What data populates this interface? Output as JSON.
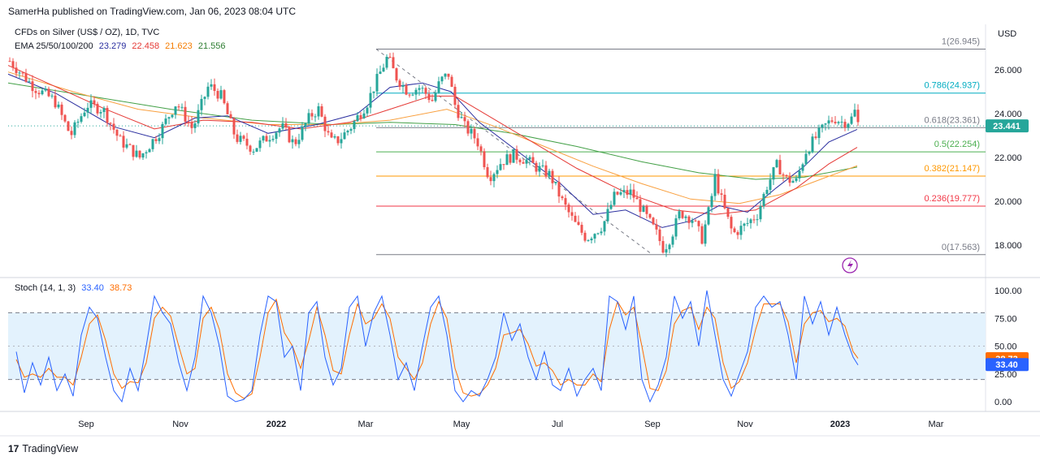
{
  "header": {
    "publisher": "SamerHa published on TradingView.com, Jan 06, 2023 08:04 UTC"
  },
  "legend": {
    "symbol": "CFDs on Silver (US$ / OZ), 1D, TVC",
    "ema_label": "EMA 25/50/100/200",
    "ema_values": [
      "23.279",
      "22.458",
      "21.623",
      "21.556"
    ],
    "stoch_label": "Stoch (14, 1, 3)",
    "stoch_values": [
      "33.40",
      "38.73"
    ]
  },
  "footer": {
    "brand": "TradingView",
    "logo_text": "17"
  },
  "colors": {
    "up": "#26a69a",
    "down": "#ef5350",
    "ema25": "#2a2e9f",
    "ema50": "#e53935",
    "ema100": "#f9a03f",
    "ema200": "#43a047",
    "stochK": "#2962ff",
    "stochD": "#ff6d00",
    "price_tag": "#26a69a",
    "band": "#e3f2fd"
  },
  "chart_data": {
    "type": "candlestick",
    "title": "CFDs on Silver (US$ / OZ), 1D, TVC",
    "currency": "USD",
    "ylim": [
      16.8,
      28.0
    ],
    "y_ticks": [
      "26.000",
      "24.000",
      "22.000",
      "20.000",
      "18.000"
    ],
    "x_ticks": [
      "Sep",
      "Nov",
      "2022",
      "Mar",
      "May",
      "Jul",
      "Sep",
      "Nov",
      "2023",
      "Mar"
    ],
    "last_price": "23.441",
    "fibonacci": [
      {
        "label": "1(26.945)",
        "value": 26.945,
        "color": "#787b86"
      },
      {
        "label": "0.786(24.937)",
        "value": 24.937,
        "color": "#00acc1"
      },
      {
        "label": "0.618(23.361)",
        "value": 23.361,
        "color": "#787b86"
      },
      {
        "label": "0.5(22.254)",
        "value": 22.254,
        "color": "#4caf50"
      },
      {
        "label": "0.382(21.147)",
        "value": 21.147,
        "color": "#ff9800"
      },
      {
        "label": "0.236(19.777)",
        "value": 19.777,
        "color": "#f23645"
      },
      {
        "label": "0(17.563)",
        "value": 17.563,
        "color": "#787b86"
      }
    ],
    "price_path": [
      [
        0,
        26.4
      ],
      [
        30,
        25.2
      ],
      [
        55,
        24.6
      ],
      [
        75,
        23.0
      ],
      [
        95,
        24.4
      ],
      [
        115,
        24.2
      ],
      [
        135,
        22.8
      ],
      [
        160,
        22.0
      ],
      [
        185,
        23.2
      ],
      [
        205,
        24.5
      ],
      [
        225,
        23.3
      ],
      [
        245,
        25.3
      ],
      [
        260,
        24.8
      ],
      [
        278,
        22.9
      ],
      [
        300,
        22.4
      ],
      [
        320,
        23.0
      ],
      [
        335,
        23.4
      ],
      [
        350,
        22.6
      ],
      [
        370,
        23.9
      ],
      [
        380,
        24.2
      ],
      [
        395,
        22.7
      ],
      [
        405,
        22.8
      ],
      [
        420,
        23.4
      ],
      [
        440,
        24.5
      ],
      [
        455,
        25.8
      ],
      [
        465,
        26.6
      ],
      [
        475,
        25.7
      ],
      [
        490,
        25.0
      ],
      [
        505,
        25.2
      ],
      [
        520,
        24.6
      ],
      [
        530,
        25.5
      ],
      [
        540,
        25.8
      ],
      [
        548,
        24.4
      ],
      [
        560,
        23.4
      ],
      [
        575,
        22.8
      ],
      [
        590,
        21.1
      ],
      [
        605,
        21.8
      ],
      [
        620,
        22.1
      ],
      [
        635,
        21.9
      ],
      [
        650,
        21.5
      ],
      [
        665,
        21.2
      ],
      [
        680,
        20.0
      ],
      [
        695,
        19.0
      ],
      [
        710,
        18.3
      ],
      [
        730,
        18.9
      ],
      [
        745,
        20.3
      ],
      [
        765,
        20.4
      ],
      [
        780,
        19.5
      ],
      [
        795,
        18.6
      ],
      [
        805,
        17.8
      ],
      [
        815,
        18.5
      ],
      [
        825,
        19.5
      ],
      [
        840,
        19.2
      ],
      [
        852,
        18.3
      ],
      [
        862,
        19.8
      ],
      [
        868,
        21.1
      ],
      [
        878,
        19.8
      ],
      [
        890,
        18.5
      ],
      [
        905,
        18.9
      ],
      [
        920,
        19.4
      ],
      [
        932,
        20.7
      ],
      [
        945,
        21.7
      ],
      [
        955,
        21.0
      ],
      [
        968,
        20.9
      ],
      [
        980,
        22.3
      ],
      [
        992,
        22.9
      ],
      [
        1005,
        23.5
      ],
      [
        1015,
        23.8
      ],
      [
        1025,
        23.6
      ],
      [
        1035,
        23.7
      ],
      [
        1040,
        24.1
      ],
      [
        1045,
        23.4
      ]
    ],
    "ema25": [
      [
        0,
        25.8
      ],
      [
        60,
        24.9
      ],
      [
        130,
        23.4
      ],
      [
        180,
        22.9
      ],
      [
        230,
        23.8
      ],
      [
        270,
        23.9
      ],
      [
        320,
        23.1
      ],
      [
        380,
        23.5
      ],
      [
        430,
        24.0
      ],
      [
        470,
        25.2
      ],
      [
        510,
        25.4
      ],
      [
        545,
        25.0
      ],
      [
        580,
        23.6
      ],
      [
        630,
        22.2
      ],
      [
        680,
        20.8
      ],
      [
        720,
        19.4
      ],
      [
        760,
        19.6
      ],
      [
        805,
        18.8
      ],
      [
        840,
        19.1
      ],
      [
        875,
        19.8
      ],
      [
        910,
        19.5
      ],
      [
        945,
        20.6
      ],
      [
        980,
        21.6
      ],
      [
        1010,
        22.7
      ],
      [
        1045,
        23.28
      ]
    ],
    "ema50": [
      [
        0,
        26.2
      ],
      [
        60,
        25.2
      ],
      [
        120,
        24.2
      ],
      [
        180,
        23.3
      ],
      [
        240,
        23.7
      ],
      [
        300,
        23.6
      ],
      [
        360,
        23.3
      ],
      [
        420,
        23.6
      ],
      [
        470,
        24.2
      ],
      [
        520,
        24.8
      ],
      [
        550,
        24.8
      ],
      [
        600,
        23.7
      ],
      [
        650,
        22.6
      ],
      [
        700,
        21.5
      ],
      [
        760,
        20.4
      ],
      [
        820,
        19.6
      ],
      [
        870,
        19.4
      ],
      [
        920,
        19.6
      ],
      [
        970,
        20.6
      ],
      [
        1010,
        21.7
      ],
      [
        1045,
        22.46
      ]
    ],
    "ema100": [
      [
        0,
        25.9
      ],
      [
        80,
        25.0
      ],
      [
        160,
        24.2
      ],
      [
        240,
        23.8
      ],
      [
        320,
        23.5
      ],
      [
        400,
        23.5
      ],
      [
        470,
        23.7
      ],
      [
        540,
        24.2
      ],
      [
        600,
        23.4
      ],
      [
        660,
        22.5
      ],
      [
        720,
        21.6
      ],
      [
        780,
        20.8
      ],
      [
        840,
        20.1
      ],
      [
        900,
        19.9
      ],
      [
        950,
        20.3
      ],
      [
        1000,
        21.0
      ],
      [
        1045,
        21.62
      ]
    ],
    "ema200": [
      [
        0,
        25.4
      ],
      [
        100,
        24.8
      ],
      [
        200,
        24.2
      ],
      [
        300,
        23.7
      ],
      [
        400,
        23.5
      ],
      [
        470,
        23.6
      ],
      [
        550,
        23.5
      ],
      [
        620,
        23.1
      ],
      [
        700,
        22.5
      ],
      [
        780,
        21.8
      ],
      [
        850,
        21.3
      ],
      [
        920,
        21.0
      ],
      [
        980,
        21.1
      ],
      [
        1045,
        21.56
      ]
    ],
    "stoch": {
      "ylim": [
        -10,
        110
      ],
      "y_ticks": [
        "100.00",
        "75.00",
        "50.00",
        "25.00",
        "0.00"
      ],
      "bands": [
        20,
        80
      ],
      "k_last": "33.40",
      "d_last": "38.73",
      "k": [
        [
          10,
          45
        ],
        [
          20,
          8
        ],
        [
          30,
          35
        ],
        [
          40,
          15
        ],
        [
          50,
          40
        ],
        [
          60,
          10
        ],
        [
          70,
          25
        ],
        [
          80,
          5
        ],
        [
          90,
          60
        ],
        [
          100,
          85
        ],
        [
          110,
          75
        ],
        [
          120,
          40
        ],
        [
          130,
          10
        ],
        [
          140,
          0
        ],
        [
          150,
          30
        ],
        [
          160,
          10
        ],
        [
          170,
          50
        ],
        [
          180,
          95
        ],
        [
          190,
          80
        ],
        [
          200,
          70
        ],
        [
          210,
          35
        ],
        [
          220,
          10
        ],
        [
          230,
          40
        ],
        [
          240,
          95
        ],
        [
          250,
          80
        ],
        [
          260,
          50
        ],
        [
          270,
          5
        ],
        [
          280,
          0
        ],
        [
          290,
          2
        ],
        [
          300,
          10
        ],
        [
          310,
          60
        ],
        [
          320,
          95
        ],
        [
          330,
          90
        ],
        [
          340,
          40
        ],
        [
          350,
          50
        ],
        [
          360,
          10
        ],
        [
          370,
          80
        ],
        [
          380,
          90
        ],
        [
          390,
          40
        ],
        [
          400,
          15
        ],
        [
          410,
          30
        ],
        [
          420,
          85
        ],
        [
          430,
          95
        ],
        [
          440,
          50
        ],
        [
          450,
          80
        ],
        [
          460,
          95
        ],
        [
          470,
          60
        ],
        [
          480,
          20
        ],
        [
          490,
          35
        ],
        [
          500,
          10
        ],
        [
          510,
          50
        ],
        [
          520,
          85
        ],
        [
          530,
          95
        ],
        [
          540,
          60
        ],
        [
          550,
          10
        ],
        [
          560,
          0
        ],
        [
          570,
          10
        ],
        [
          580,
          5
        ],
        [
          590,
          20
        ],
        [
          600,
          40
        ],
        [
          610,
          80
        ],
        [
          620,
          55
        ],
        [
          630,
          70
        ],
        [
          640,
          40
        ],
        [
          650,
          20
        ],
        [
          660,
          45
        ],
        [
          670,
          15
        ],
        [
          680,
          10
        ],
        [
          690,
          30
        ],
        [
          700,
          5
        ],
        [
          710,
          20
        ],
        [
          720,
          30
        ],
        [
          730,
          10
        ],
        [
          740,
          95
        ],
        [
          750,
          90
        ],
        [
          760,
          65
        ],
        [
          770,
          95
        ],
        [
          780,
          20
        ],
        [
          790,
          0
        ],
        [
          800,
          15
        ],
        [
          810,
          40
        ],
        [
          820,
          95
        ],
        [
          830,
          75
        ],
        [
          840,
          90
        ],
        [
          850,
          50
        ],
        [
          860,
          100
        ],
        [
          870,
          60
        ],
        [
          880,
          20
        ],
        [
          890,
          5
        ],
        [
          900,
          25
        ],
        [
          910,
          45
        ],
        [
          920,
          85
        ],
        [
          930,
          95
        ],
        [
          940,
          85
        ],
        [
          950,
          90
        ],
        [
          960,
          60
        ],
        [
          970,
          20
        ],
        [
          980,
          95
        ],
        [
          990,
          70
        ],
        [
          1000,
          90
        ],
        [
          1010,
          60
        ],
        [
          1020,
          85
        ],
        [
          1030,
          60
        ],
        [
          1040,
          40
        ],
        [
          1046,
          33
        ]
      ],
      "d": [
        [
          10,
          38
        ],
        [
          20,
          22
        ],
        [
          30,
          25
        ],
        [
          40,
          22
        ],
        [
          50,
          30
        ],
        [
          60,
          22
        ],
        [
          70,
          22
        ],
        [
          80,
          15
        ],
        [
          90,
          40
        ],
        [
          100,
          70
        ],
        [
          110,
          78
        ],
        [
          120,
          55
        ],
        [
          130,
          25
        ],
        [
          140,
          12
        ],
        [
          150,
          18
        ],
        [
          160,
          17
        ],
        [
          170,
          35
        ],
        [
          180,
          75
        ],
        [
          190,
          85
        ],
        [
          200,
          77
        ],
        [
          210,
          50
        ],
        [
          220,
          25
        ],
        [
          230,
          30
        ],
        [
          240,
          75
        ],
        [
          250,
          85
        ],
        [
          260,
          65
        ],
        [
          270,
          25
        ],
        [
          280,
          8
        ],
        [
          290,
          3
        ],
        [
          300,
          7
        ],
        [
          310,
          40
        ],
        [
          320,
          80
        ],
        [
          330,
          92
        ],
        [
          340,
          62
        ],
        [
          350,
          50
        ],
        [
          360,
          30
        ],
        [
          370,
          55
        ],
        [
          380,
          85
        ],
        [
          390,
          60
        ],
        [
          400,
          28
        ],
        [
          410,
          25
        ],
        [
          420,
          60
        ],
        [
          430,
          88
        ],
        [
          440,
          70
        ],
        [
          450,
          75
        ],
        [
          460,
          88
        ],
        [
          470,
          75
        ],
        [
          480,
          40
        ],
        [
          490,
          30
        ],
        [
          500,
          20
        ],
        [
          510,
          35
        ],
        [
          520,
          70
        ],
        [
          530,
          90
        ],
        [
          540,
          75
        ],
        [
          550,
          30
        ],
        [
          560,
          8
        ],
        [
          570,
          5
        ],
        [
          580,
          7
        ],
        [
          590,
          15
        ],
        [
          600,
          30
        ],
        [
          610,
          60
        ],
        [
          620,
          62
        ],
        [
          630,
          65
        ],
        [
          640,
          52
        ],
        [
          650,
          32
        ],
        [
          660,
          35
        ],
        [
          670,
          28
        ],
        [
          680,
          15
        ],
        [
          690,
          20
        ],
        [
          700,
          15
        ],
        [
          710,
          15
        ],
        [
          720,
          25
        ],
        [
          730,
          18
        ],
        [
          740,
          65
        ],
        [
          750,
          90
        ],
        [
          760,
          78
        ],
        [
          770,
          85
        ],
        [
          780,
          50
        ],
        [
          790,
          12
        ],
        [
          800,
          10
        ],
        [
          810,
          28
        ],
        [
          820,
          70
        ],
        [
          830,
          82
        ],
        [
          840,
          85
        ],
        [
          850,
          65
        ],
        [
          860,
          85
        ],
        [
          870,
          75
        ],
        [
          880,
          35
        ],
        [
          890,
          12
        ],
        [
          900,
          18
        ],
        [
          910,
          35
        ],
        [
          920,
          65
        ],
        [
          930,
          88
        ],
        [
          940,
          88
        ],
        [
          950,
          88
        ],
        [
          960,
          72
        ],
        [
          970,
          35
        ],
        [
          980,
          70
        ],
        [
          990,
          80
        ],
        [
          1000,
          82
        ],
        [
          1010,
          72
        ],
        [
          1020,
          75
        ],
        [
          1030,
          68
        ],
        [
          1040,
          45
        ],
        [
          1046,
          39
        ]
      ]
    }
  }
}
